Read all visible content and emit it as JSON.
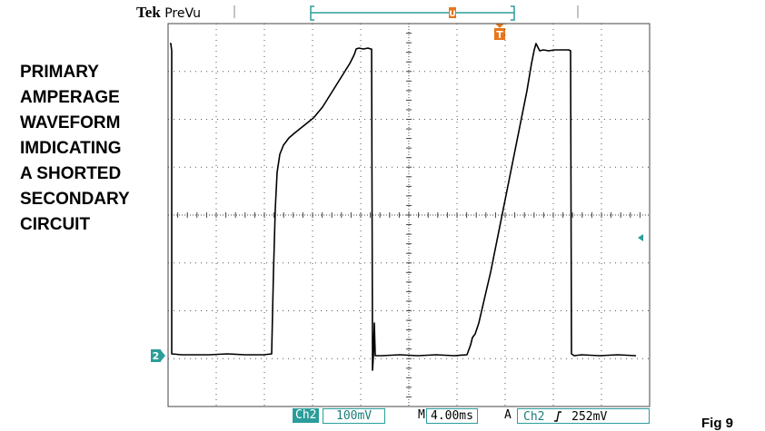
{
  "header": {
    "brand": "Tek",
    "mode": "PreVu",
    "trigger_marker_glyph": "T",
    "position_marker_glyph": "U"
  },
  "caption_lines": [
    "PRIMARY",
    "AMPERAGE",
    "WAVEFORM",
    "IMDICATING",
    "A SHORTED",
    "SECONDARY",
    "CIRCUIT"
  ],
  "channel_marker": "2",
  "status": {
    "channel": "Ch2",
    "volts_per_div": "100mV",
    "timebase_prefix": "M",
    "timebase": "4.00ms",
    "trigger_mode": "A",
    "trigger_channel": "Ch2",
    "trigger_slope_icon": "rising-edge-icon",
    "trigger_level": "252mV"
  },
  "figure_label": "Fig 9",
  "colors": {
    "teal": "#2a9d9a",
    "orange": "#e8761b",
    "trace": "#000000",
    "graticule": "#444444"
  }
}
